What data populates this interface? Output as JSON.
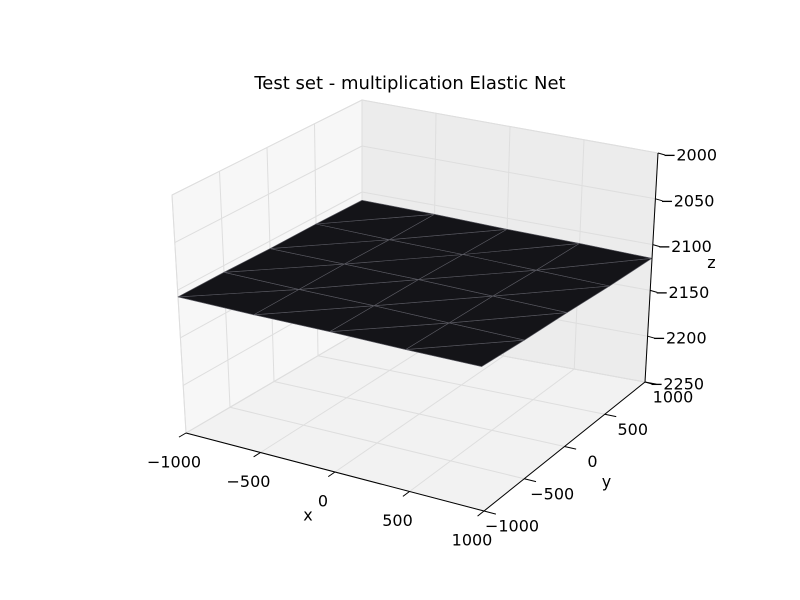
{
  "chart_data": {
    "type": "surface3d",
    "title": "Test set - multiplication Elastic Net",
    "xlabel": "x",
    "ylabel": "y",
    "zlabel": "z",
    "xlim": [
      -1000,
      1000
    ],
    "ylim": [
      -1000,
      1000
    ],
    "zlim": [
      -2250,
      -2000
    ],
    "xticks": [
      {
        "value": -1000,
        "label": "−1000"
      },
      {
        "value": -500,
        "label": "−500"
      },
      0,
      500,
      1000
    ],
    "yticks": [
      {
        "value": -1000,
        "label": "−1000"
      },
      {
        "value": -500,
        "label": "−500"
      },
      0,
      500,
      1000
    ],
    "zticks": [
      {
        "value": -2250,
        "label": "−2250"
      },
      {
        "value": -2200,
        "label": "−2200"
      },
      {
        "value": -2150,
        "label": "−2150"
      },
      {
        "value": -2100,
        "label": "−2100"
      },
      {
        "value": -2050,
        "label": "−2050"
      },
      {
        "value": -2000,
        "label": "−2000"
      }
    ],
    "x": [
      -1000,
      -500,
      0,
      500,
      1000
    ],
    "y": [
      -1000,
      -500,
      0,
      500,
      1000
    ],
    "z": [
      [
        -2107,
        -2105,
        -2102,
        -2100,
        -2097
      ],
      [
        -2107,
        -2106,
        -2104,
        -2103,
        -2102
      ],
      [
        -2108,
        -2107,
        -2106,
        -2106,
        -2106
      ],
      [
        -2108,
        -2109,
        -2109,
        -2110,
        -2111
      ],
      [
        -2109,
        -2110,
        -2112,
        -2113,
        -2115
      ]
    ],
    "color": "#141418",
    "edgecolor": "#5a5a62",
    "grid": true
  }
}
